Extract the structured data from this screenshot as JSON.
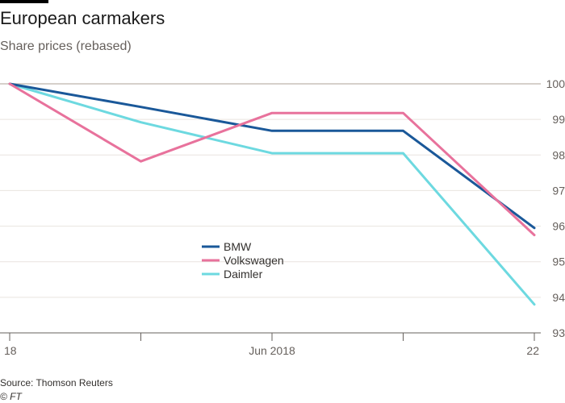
{
  "header": {
    "title": "European carmakers",
    "subtitle": "Share prices (rebased)"
  },
  "footer": {
    "source": "Source: Thomson Reuters",
    "credit": "© FT"
  },
  "chart_data": {
    "type": "line",
    "title": "European carmakers",
    "subtitle": "Share prices (rebased)",
    "x_tick_labels": [
      "18",
      "",
      "Jun 2018",
      "",
      "22"
    ],
    "x": [
      0,
      1,
      2,
      3,
      4
    ],
    "ylim": [
      93,
      100
    ],
    "y_ticks": [
      93,
      94,
      95,
      96,
      97,
      98,
      99,
      100
    ],
    "grid": true,
    "legend_position": "center-left",
    "series": [
      {
        "name": "BMW",
        "color": "#1a5899",
        "values": [
          100,
          99.35,
          98.68,
          98.68,
          95.95
        ]
      },
      {
        "name": "Volkswagen",
        "color": "#e8729c",
        "values": [
          100,
          97.82,
          99.18,
          99.18,
          95.75
        ]
      },
      {
        "name": "Daimler",
        "color": "#6dd9e0",
        "values": [
          100,
          98.92,
          98.05,
          98.05,
          93.8
        ]
      }
    ]
  }
}
